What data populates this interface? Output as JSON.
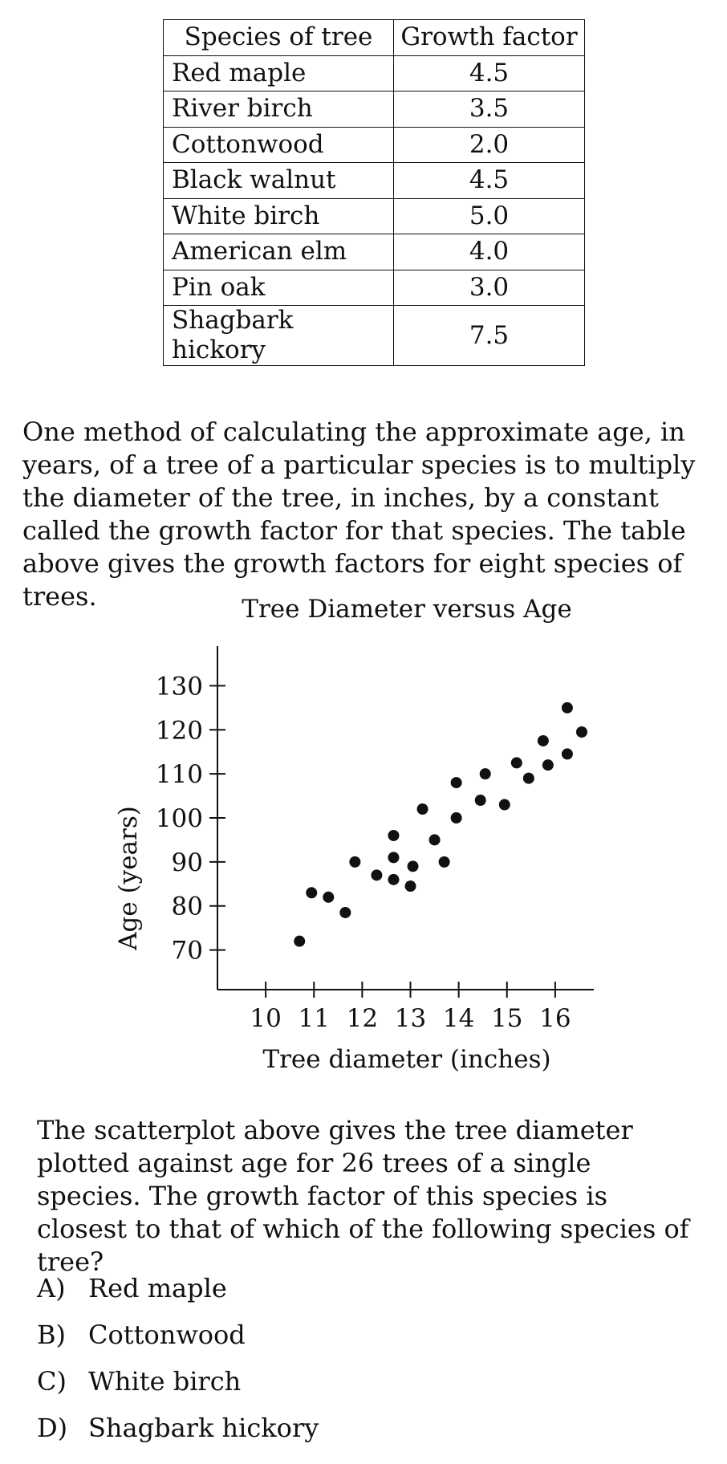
{
  "table": {
    "headers": [
      "Species of tree",
      "Growth factor"
    ],
    "rows": [
      {
        "species": "Red maple",
        "factor": "4.5"
      },
      {
        "species": "River birch",
        "factor": "3.5"
      },
      {
        "species": "Cottonwood",
        "factor": "2.0"
      },
      {
        "species": "Black walnut",
        "factor": "4.5"
      },
      {
        "species": "White birch",
        "factor": "5.0"
      },
      {
        "species": "American elm",
        "factor": "4.0"
      },
      {
        "species": "Pin oak",
        "factor": "3.0"
      },
      {
        "species": "Shagbark hickory",
        "factor": "7.5"
      }
    ]
  },
  "intro_text": "One method of calculating the approximate age, in years, of a tree of a particular species is to multiply the diameter of the tree, in inches, by a constant called the growth factor for that species.  The table above gives the growth factors for eight species of trees.",
  "chart_data": {
    "type": "scatter",
    "title": "Tree Diameter versus Age",
    "xlabel": "Tree diameter (inches)",
    "ylabel": "Age (years)",
    "xticks": [
      10,
      11,
      12,
      13,
      14,
      15,
      16
    ],
    "yticks": [
      70,
      80,
      90,
      100,
      110,
      120,
      130
    ],
    "xlim": [
      9.0,
      16.8
    ],
    "ylim": [
      61,
      139
    ],
    "grid": false,
    "point_color": "#111111",
    "points": [
      {
        "x": 10.7,
        "y": 72
      },
      {
        "x": 10.95,
        "y": 83
      },
      {
        "x": 11.3,
        "y": 82
      },
      {
        "x": 11.65,
        "y": 78.5
      },
      {
        "x": 11.85,
        "y": 90
      },
      {
        "x": 12.3,
        "y": 87
      },
      {
        "x": 12.65,
        "y": 96
      },
      {
        "x": 12.65,
        "y": 91
      },
      {
        "x": 12.65,
        "y": 86
      },
      {
        "x": 13.0,
        "y": 84.5
      },
      {
        "x": 13.05,
        "y": 89
      },
      {
        "x": 13.25,
        "y": 102
      },
      {
        "x": 13.5,
        "y": 95
      },
      {
        "x": 13.7,
        "y": 90
      },
      {
        "x": 13.95,
        "y": 108
      },
      {
        "x": 13.95,
        "y": 100
      },
      {
        "x": 14.45,
        "y": 104
      },
      {
        "x": 14.55,
        "y": 110
      },
      {
        "x": 14.95,
        "y": 103
      },
      {
        "x": 15.2,
        "y": 112.5
      },
      {
        "x": 15.45,
        "y": 109
      },
      {
        "x": 15.75,
        "y": 117.5
      },
      {
        "x": 15.85,
        "y": 112
      },
      {
        "x": 16.25,
        "y": 125
      },
      {
        "x": 16.25,
        "y": 114.5
      },
      {
        "x": 16.55,
        "y": 119.5
      }
    ]
  },
  "question_text": "The scatterplot above gives the tree diameter plotted against age for 26 trees of a single species.  The growth factor of this species is closest to that of which of the following species of tree?",
  "choices": [
    {
      "letter": "A)",
      "text": "Red maple"
    },
    {
      "letter": "B)",
      "text": "Cottonwood"
    },
    {
      "letter": "C)",
      "text": "White birch"
    },
    {
      "letter": "D)",
      "text": "Shagbark hickory"
    }
  ]
}
